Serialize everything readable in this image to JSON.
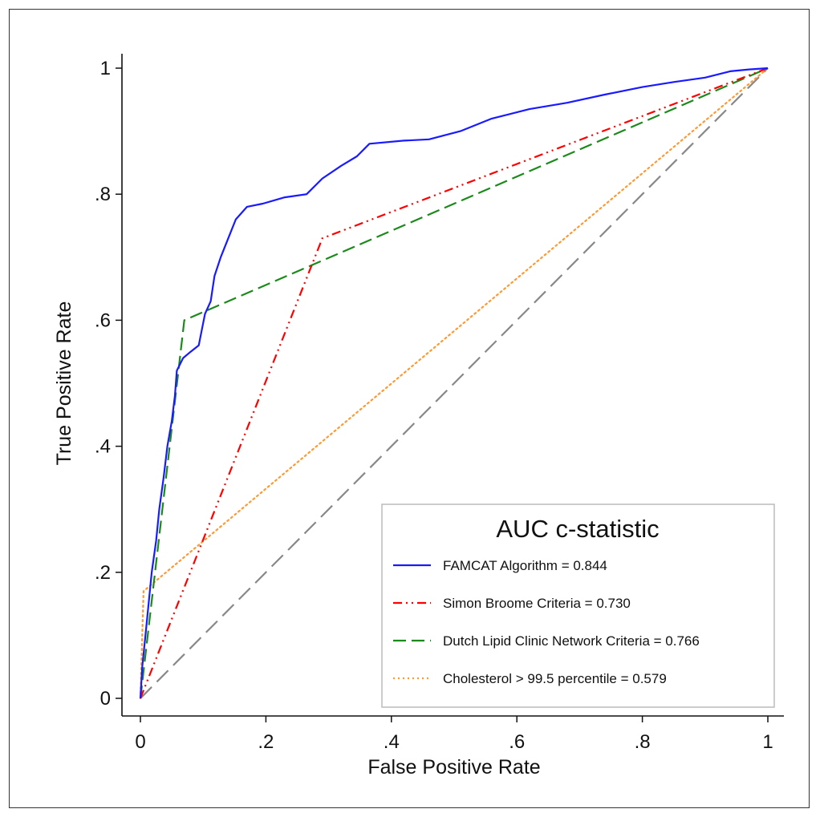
{
  "chart_data": {
    "type": "line",
    "title": "",
    "xlabel": "False Positive Rate",
    "ylabel": "True Positive Rate",
    "xlim": [
      0,
      1
    ],
    "ylim": [
      0,
      1
    ],
    "x_ticks": [
      {
        "v": 0,
        "label": "0"
      },
      {
        "v": 0.2,
        "label": ".2"
      },
      {
        "v": 0.4,
        "label": ".4"
      },
      {
        "v": 0.6,
        "label": ".6"
      },
      {
        "v": 0.8,
        "label": ".8"
      },
      {
        "v": 1,
        "label": "1"
      }
    ],
    "y_ticks": [
      {
        "v": 0,
        "label": "0"
      },
      {
        "v": 0.2,
        "label": ".2"
      },
      {
        "v": 0.4,
        "label": ".4"
      },
      {
        "v": 0.6,
        "label": ".6"
      },
      {
        "v": 0.8,
        "label": ".8"
      },
      {
        "v": 1,
        "label": "1"
      }
    ],
    "grid": false,
    "legend": {
      "title": "AUC c-statistic",
      "position": "bottom-right"
    },
    "series": [
      {
        "name": "FAMCAT Algorithm = 0.844",
        "color": "#1a1aff",
        "style": "solid",
        "points": [
          [
            0,
            0
          ],
          [
            0.003,
            0.05
          ],
          [
            0.008,
            0.1
          ],
          [
            0.013,
            0.15
          ],
          [
            0.018,
            0.2
          ],
          [
            0.025,
            0.25
          ],
          [
            0.03,
            0.3
          ],
          [
            0.037,
            0.35
          ],
          [
            0.043,
            0.4
          ],
          [
            0.05,
            0.44
          ],
          [
            0.055,
            0.48
          ],
          [
            0.058,
            0.52
          ],
          [
            0.068,
            0.54
          ],
          [
            0.08,
            0.55
          ],
          [
            0.093,
            0.56
          ],
          [
            0.103,
            0.61
          ],
          [
            0.112,
            0.63
          ],
          [
            0.118,
            0.67
          ],
          [
            0.128,
            0.7
          ],
          [
            0.14,
            0.73
          ],
          [
            0.152,
            0.76
          ],
          [
            0.17,
            0.78
          ],
          [
            0.195,
            0.785
          ],
          [
            0.23,
            0.795
          ],
          [
            0.265,
            0.8
          ],
          [
            0.29,
            0.825
          ],
          [
            0.32,
            0.845
          ],
          [
            0.345,
            0.86
          ],
          [
            0.365,
            0.88
          ],
          [
            0.42,
            0.885
          ],
          [
            0.46,
            0.887
          ],
          [
            0.51,
            0.9
          ],
          [
            0.56,
            0.92
          ],
          [
            0.62,
            0.935
          ],
          [
            0.68,
            0.945
          ],
          [
            0.74,
            0.958
          ],
          [
            0.8,
            0.97
          ],
          [
            0.85,
            0.978
          ],
          [
            0.9,
            0.985
          ],
          [
            0.94,
            0.995
          ],
          [
            0.97,
            0.998
          ],
          [
            1,
            1
          ]
        ]
      },
      {
        "name": "Simon Broome Criteria = 0.730",
        "color": "#ff0000",
        "style": "dash-dot-dot",
        "points": [
          [
            0,
            0
          ],
          [
            0.29,
            0.73
          ],
          [
            1,
            1
          ]
        ]
      },
      {
        "name": "Dutch Lipid Clinic Network Criteria = 0.766",
        "color": "#1a8a1a",
        "style": "dashed",
        "points": [
          [
            0,
            0
          ],
          [
            0.07,
            0.6
          ],
          [
            1,
            1
          ]
        ]
      },
      {
        "name": "Cholesterol > 99.5 percentile = 0.579",
        "color": "#ff9933",
        "style": "dotted",
        "points": [
          [
            0,
            0
          ],
          [
            0.005,
            0.17
          ],
          [
            1,
            1
          ]
        ]
      },
      {
        "name": "",
        "color": "#888888",
        "style": "long-dash",
        "points": [
          [
            0,
            0
          ],
          [
            1,
            1
          ]
        ]
      }
    ]
  }
}
